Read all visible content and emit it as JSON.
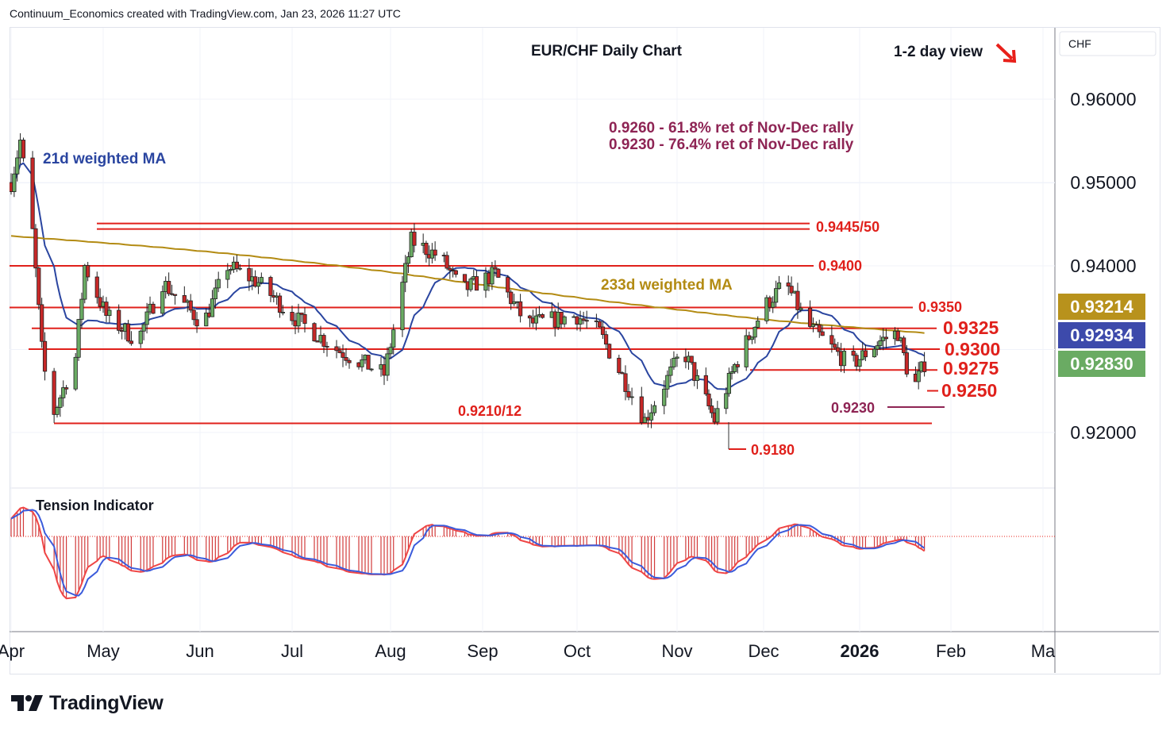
{
  "header": {
    "credit": "Continuum_Economics created with TradingView.com, Jan 23, 2026 11:27 UTC"
  },
  "chart_data": {
    "type": "candlestick",
    "title": "EUR/CHF Daily Chart",
    "view_label": "1-2 day view",
    "view_direction": "down",
    "currency_label": "CHF",
    "y_ticks": [
      "0.96000",
      "0.95000",
      "0.94000",
      "0.92000"
    ],
    "ylim": [
      0.9135,
      0.9665
    ],
    "x_ticks": [
      "Apr",
      "May",
      "Jun",
      "Jul",
      "Aug",
      "Sep",
      "Oct",
      "Nov",
      "Dec",
      "2026",
      "Feb",
      "Ma"
    ],
    "price_badges": [
      {
        "label": "0.93214",
        "value": 0.93214,
        "color": "#b8921c"
      },
      {
        "label": "0.92934",
        "value": 0.92934,
        "color": "#3d4aab"
      },
      {
        "label": "0.92830",
        "value": 0.9283,
        "color": "#6aab63"
      }
    ],
    "ma_labels": [
      {
        "text": "21d weighted MA",
        "color": "#2a45a0"
      },
      {
        "text": "233d weighted MA",
        "color": "#b38b13"
      }
    ],
    "fib_notes": [
      "0.9260 - 61.8% ret of Nov-Dec rally",
      "0.9230 - 76.4% ret of Nov-Dec rally"
    ],
    "levels": [
      {
        "label": "0.9445/50",
        "value": 0.9448,
        "color": "#e0201b"
      },
      {
        "label": "0.9400",
        "value": 0.94,
        "color": "#e0201b"
      },
      {
        "label": "0.9350",
        "value": 0.935,
        "color": "#e0201b"
      },
      {
        "label": "0.9325",
        "value": 0.9325,
        "color": "#e0201b"
      },
      {
        "label": "0.9300",
        "value": 0.93,
        "color": "#e0201b"
      },
      {
        "label": "0.9275",
        "value": 0.9275,
        "color": "#e0201b"
      },
      {
        "label": "0.9250",
        "value": 0.925,
        "color": "#e0201b"
      },
      {
        "label": "0.9230",
        "value": 0.923,
        "color": "#8e2454"
      },
      {
        "label": "0.9210/12",
        "value": 0.9211,
        "color": "#e0201b"
      },
      {
        "label": "0.9180",
        "value": 0.918,
        "color": "#e0201b"
      }
    ],
    "price_anchors": [
      {
        "date": "Apr 1",
        "value": 0.95
      },
      {
        "date": "Apr 4",
        "value": 0.955
      },
      {
        "date": "Apr 8",
        "value": 0.944
      },
      {
        "date": "Apr 11",
        "value": 0.93
      },
      {
        "date": "Apr 14",
        "value": 0.9215
      },
      {
        "date": "Apr 22",
        "value": 0.929
      },
      {
        "date": "Apr 25",
        "value": 0.94
      },
      {
        "date": "May 2",
        "value": 0.934
      },
      {
        "date": "May 12",
        "value": 0.931
      },
      {
        "date": "May 20",
        "value": 0.938
      },
      {
        "date": "Jun 2",
        "value": 0.933
      },
      {
        "date": "Jun 10",
        "value": 0.94
      },
      {
        "date": "Jun 20",
        "value": 0.938
      },
      {
        "date": "Jul 1",
        "value": 0.934
      },
      {
        "date": "Jul 15",
        "value": 0.93
      },
      {
        "date": "Jul 30",
        "value": 0.927
      },
      {
        "date": "Aug 8",
        "value": 0.943
      },
      {
        "date": "Aug 18",
        "value": 0.941
      },
      {
        "date": "Aug 25",
        "value": 0.937
      },
      {
        "date": "Sep 5",
        "value": 0.939
      },
      {
        "date": "Sep 15",
        "value": 0.933
      },
      {
        "date": "Oct 1",
        "value": 0.934
      },
      {
        "date": "Oct 8",
        "value": 0.932
      },
      {
        "date": "Oct 22",
        "value": 0.9215
      },
      {
        "date": "Nov 3",
        "value": 0.93
      },
      {
        "date": "Nov 14",
        "value": 0.9215
      },
      {
        "date": "Nov 21",
        "value": 0.928
      },
      {
        "date": "Dec 1",
        "value": 0.935
      },
      {
        "date": "Dec 8",
        "value": 0.938
      },
      {
        "date": "Dec 15",
        "value": 0.933
      },
      {
        "date": "Dec 29",
        "value": 0.928
      },
      {
        "date": "Jan 8",
        "value": 0.931
      },
      {
        "date": "Jan 14",
        "value": 0.932
      },
      {
        "date": "Jan 19",
        "value": 0.925
      },
      {
        "date": "Jan 23",
        "value": 0.9283
      }
    ],
    "indicator": {
      "title": "Tension Indicator",
      "type": "histogram"
    }
  }
}
